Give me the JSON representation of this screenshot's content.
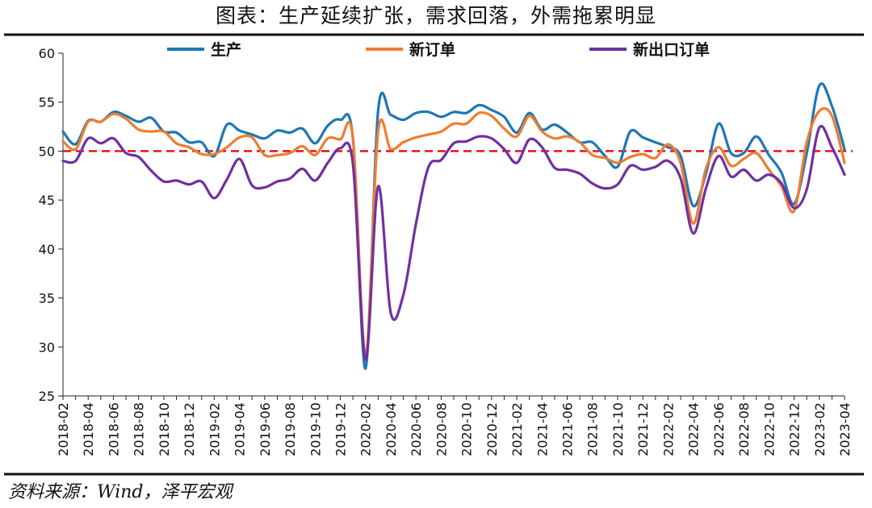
{
  "figure": {
    "title": "图表：生产延续扩张，需求回落，外需拖累明显",
    "source": "资料来源：Wind，泽平宏观"
  },
  "chart_data": {
    "type": "line",
    "ylim": [
      25,
      60
    ],
    "yticks": [
      25,
      30,
      35,
      40,
      45,
      50,
      55,
      60
    ],
    "xtick_labels": [
      "2018-02",
      "2018-04",
      "2018-06",
      "2018-08",
      "2018-10",
      "2018-12",
      "2019-02",
      "2019-04",
      "2019-06",
      "2019-08",
      "2019-10",
      "2019-12",
      "2020-02",
      "2020-04",
      "2020-06",
      "2020-08",
      "2020-10",
      "2020-12",
      "2021-02",
      "2021-04",
      "2021-06",
      "2021-08",
      "2021-10",
      "2021-12",
      "2022-02",
      "2022-04",
      "2022-06",
      "2022-08",
      "2022-10",
      "2022-12",
      "2023-02",
      "2023-04"
    ],
    "x": [
      "2018-02",
      "2018-03",
      "2018-04",
      "2018-05",
      "2018-06",
      "2018-07",
      "2018-08",
      "2018-09",
      "2018-10",
      "2018-11",
      "2018-12",
      "2019-01",
      "2019-02",
      "2019-03",
      "2019-04",
      "2019-05",
      "2019-06",
      "2019-07",
      "2019-08",
      "2019-09",
      "2019-10",
      "2019-11",
      "2019-12",
      "2020-01",
      "2020-02",
      "2020-03",
      "2020-04",
      "2020-05",
      "2020-06",
      "2020-07",
      "2020-08",
      "2020-09",
      "2020-10",
      "2020-11",
      "2020-12",
      "2021-01",
      "2021-02",
      "2021-03",
      "2021-04",
      "2021-05",
      "2021-06",
      "2021-07",
      "2021-08",
      "2021-09",
      "2021-10",
      "2021-11",
      "2021-12",
      "2022-01",
      "2022-02",
      "2022-03",
      "2022-04",
      "2022-05",
      "2022-06",
      "2022-07",
      "2022-08",
      "2022-09",
      "2022-10",
      "2022-11",
      "2022-12",
      "2023-01",
      "2023-02",
      "2023-03",
      "2023-04"
    ],
    "reference_line": {
      "y": 50,
      "color": "#e0141e",
      "style": "dashed"
    },
    "legend_position": "top",
    "series": [
      {
        "name": "生产",
        "color": "#1f77b4",
        "values": [
          52.0,
          50.7,
          53.1,
          53.0,
          54.0,
          53.6,
          53.0,
          53.4,
          52.0,
          51.9,
          50.9,
          50.9,
          49.5,
          52.7,
          52.1,
          51.7,
          51.3,
          52.1,
          51.9,
          52.3,
          50.8,
          52.6,
          53.2,
          51.3,
          27.8,
          54.1,
          53.7,
          53.2,
          53.9,
          54.0,
          53.5,
          54.0,
          53.9,
          54.7,
          54.2,
          53.5,
          51.9,
          53.9,
          52.2,
          52.7,
          51.9,
          50.9,
          50.9,
          49.5,
          48.4,
          52.0,
          51.4,
          50.9,
          50.4,
          49.5,
          44.4,
          47.7,
          52.8,
          49.8,
          49.8,
          51.5,
          49.6,
          47.8,
          44.6,
          49.8,
          56.7,
          54.6,
          50.2
        ]
      },
      {
        "name": "新订单",
        "color": "#ed7d31",
        "values": [
          51.0,
          50.2,
          53.0,
          53.0,
          53.8,
          53.3,
          52.2,
          52.0,
          52.0,
          50.8,
          50.4,
          49.7,
          49.7,
          50.4,
          51.4,
          51.4,
          49.6,
          49.6,
          49.8,
          50.5,
          49.6,
          51.3,
          51.2,
          51.4,
          29.3,
          52.0,
          50.2,
          50.9,
          51.4,
          51.7,
          52.0,
          52.8,
          52.8,
          53.9,
          53.6,
          52.3,
          51.5,
          53.6,
          52.0,
          51.3,
          51.5,
          50.9,
          49.6,
          49.3,
          48.8,
          49.4,
          49.7,
          49.3,
          50.7,
          48.8,
          42.6,
          48.2,
          50.4,
          48.5,
          49.2,
          49.8,
          48.1,
          46.4,
          43.9,
          50.9,
          54.1,
          53.6,
          48.8
        ]
      },
      {
        "name": "新出口订单",
        "color": "#7030a0",
        "values": [
          49.0,
          49.0,
          51.3,
          50.8,
          51.3,
          49.8,
          49.4,
          48.0,
          46.9,
          47.0,
          46.6,
          46.9,
          45.2,
          47.1,
          49.2,
          46.5,
          46.3,
          46.9,
          47.2,
          48.2,
          47.0,
          48.8,
          50.3,
          48.7,
          28.7,
          46.4,
          33.5,
          35.3,
          42.6,
          48.4,
          49.1,
          50.8,
          51.0,
          51.5,
          51.3,
          50.2,
          48.8,
          51.2,
          50.4,
          48.3,
          48.1,
          47.7,
          46.7,
          46.2,
          46.6,
          48.5,
          48.1,
          48.4,
          49.0,
          47.2,
          41.6,
          46.2,
          49.5,
          47.4,
          48.1,
          47.0,
          47.6,
          46.7,
          44.2,
          46.1,
          52.4,
          50.4,
          47.6
        ]
      }
    ]
  }
}
